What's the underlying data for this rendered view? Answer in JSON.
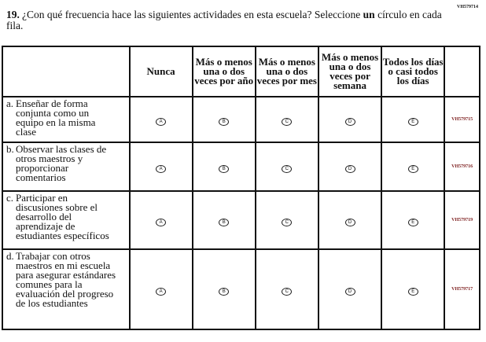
{
  "page_code": "VH579714",
  "question": {
    "number": "19.",
    "text_before": "¿Con qué frecuencia hace las siguientes actividades en esta escuela? Seleccione ",
    "emphasis": "un",
    "text_after": " círculo en cada fila."
  },
  "columns": [
    "Nunca",
    "Más o menos una o dos veces por año",
    "Más o menos una o dos veces por mes",
    "Más o menos una o dos veces por semana",
    "Todos los días o casi todos los días"
  ],
  "bubbles": [
    "A",
    "B",
    "C",
    "D",
    "E"
  ],
  "rows": [
    {
      "letter": "a.",
      "text": "Enseñar de forma conjunta como un equipo en la misma clase",
      "code": "VH579715"
    },
    {
      "letter": "b.",
      "text": "Observar las clases de otros maestros y proporcionar comentarios",
      "code": "VH579716"
    },
    {
      "letter": "c.",
      "text": "Participar en discusiones sobre el desarrollo del aprendizaje de estudiantes específicos",
      "code": "VH579719"
    },
    {
      "letter": "d.",
      "text": "Trabajar con otros maestros en mi escuela para asegurar estándares comunes para la evaluación del progreso de los estudiantes",
      "code": "VH579717"
    }
  ]
}
